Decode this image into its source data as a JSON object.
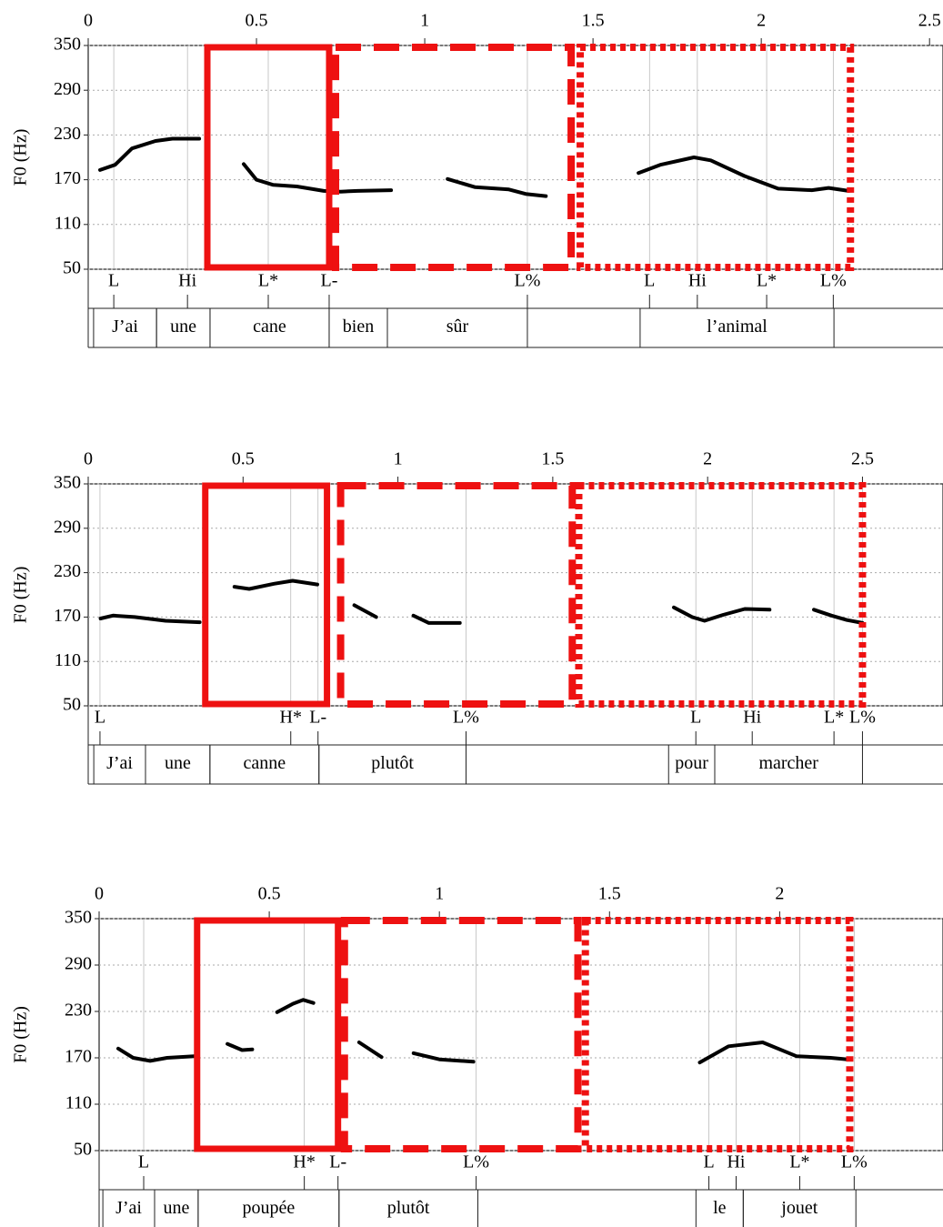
{
  "chart_data": [
    {
      "type": "line",
      "ylabel": "F0 (Hz)",
      "color": "#000000",
      "box_color": "#ee1111",
      "grid": true,
      "xlim": [
        0,
        2.54
      ],
      "xticks": [
        0,
        0.5,
        1,
        1.5,
        2,
        2.5
      ],
      "ylim": [
        50,
        350
      ],
      "yticks": [
        50,
        110,
        170,
        230,
        290,
        350
      ],
      "x": [
        0.035,
        0.08,
        0.13,
        0.2,
        0.25,
        0.33,
        null,
        0.462,
        0.5,
        0.55,
        0.62,
        0.7,
        0.75,
        0.8,
        0.9,
        null,
        1.068,
        1.15,
        1.25,
        1.3,
        1.36,
        null,
        1.635,
        1.7,
        1.8,
        1.85,
        1.95,
        2.05,
        2.15,
        2.2,
        2.26
      ],
      "values": [
        183,
        190,
        212,
        222,
        225,
        225,
        null,
        191,
        170,
        163,
        161,
        155,
        154,
        155,
        156,
        null,
        171,
        160,
        157,
        151,
        148,
        null,
        179,
        190,
        200,
        196,
        175,
        158,
        156,
        159,
        155
      ],
      "tones": [
        {
          "label": "L",
          "x": 0.076
        },
        {
          "label": "Hi",
          "x": 0.295
        },
        {
          "label": "L*",
          "x": 0.535
        },
        {
          "label": "L-",
          "x": 0.716
        },
        {
          "label": "L%",
          "x": 1.305
        },
        {
          "label": "L",
          "x": 1.668
        },
        {
          "label": "Hi",
          "x": 1.81
        },
        {
          "label": "L*",
          "x": 2.016
        },
        {
          "label": "L%",
          "x": 2.214
        }
      ],
      "words": [
        {
          "label": "J’ai",
          "start": 0.016,
          "end": 0.203
        },
        {
          "label": "une",
          "start": 0.203,
          "end": 0.362
        },
        {
          "label": "cane",
          "start": 0.362,
          "end": 0.716
        },
        {
          "label": "bien",
          "start": 0.716,
          "end": 0.889
        },
        {
          "label": "sûr",
          "start": 0.889,
          "end": 1.305
        },
        {
          "label": "l’animal",
          "start": 1.64,
          "end": 2.216
        }
      ],
      "boxes": [
        {
          "style": "solid",
          "start": 0.354,
          "end": 0.716
        },
        {
          "style": "dashed",
          "start": 0.735,
          "end": 1.435
        },
        {
          "style": "dotted",
          "start": 1.462,
          "end": 2.265
        }
      ]
    },
    {
      "type": "line",
      "ylabel": "F0 (Hz)",
      "color": "#000000",
      "box_color": "#ee1111",
      "grid": true,
      "xlim": [
        0,
        2.76
      ],
      "xticks": [
        0,
        0.5,
        1,
        1.5,
        2,
        2.5
      ],
      "ylim": [
        50,
        350
      ],
      "yticks": [
        50,
        110,
        170,
        230,
        290,
        350
      ],
      "x": [
        0.04,
        0.08,
        0.15,
        0.25,
        0.36,
        null,
        0.472,
        0.52,
        0.6,
        0.66,
        0.74,
        null,
        0.859,
        0.93,
        null,
        1.05,
        1.1,
        1.2,
        null,
        1.891,
        1.95,
        1.99,
        2.05,
        2.12,
        2.2,
        null,
        2.343,
        2.4,
        2.45,
        2.5
      ],
      "values": [
        168,
        172,
        170,
        165,
        163,
        null,
        211,
        208,
        215,
        219,
        214,
        null,
        186,
        170,
        null,
        172,
        162,
        162,
        null,
        183,
        170,
        165,
        173,
        181,
        180,
        null,
        180,
        172,
        166,
        162
      ],
      "tones": [
        {
          "label": "L",
          "x": 0.038
        },
        {
          "label": "H*",
          "x": 0.654
        },
        {
          "label": "L-",
          "x": 0.742
        },
        {
          "label": "L%",
          "x": 1.22
        },
        {
          "label": "L",
          "x": 1.962
        },
        {
          "label": "Hi",
          "x": 2.144
        },
        {
          "label": "L*",
          "x": 2.408
        },
        {
          "label": "L%",
          "x": 2.5
        }
      ],
      "words": [
        {
          "label": "J’ai",
          "start": 0.018,
          "end": 0.185
        },
        {
          "label": "une",
          "start": 0.185,
          "end": 0.393
        },
        {
          "label": "canne",
          "start": 0.393,
          "end": 0.745
        },
        {
          "label": "plutôt",
          "start": 0.745,
          "end": 1.22
        },
        {
          "label": "pour",
          "start": 1.874,
          "end": 2.023
        },
        {
          "label": "marcher",
          "start": 2.023,
          "end": 2.5
        }
      ],
      "boxes": [
        {
          "style": "solid",
          "start": 0.378,
          "end": 0.771
        },
        {
          "style": "dashed",
          "start": 0.815,
          "end": 1.563
        },
        {
          "style": "dotted",
          "start": 1.584,
          "end": 2.5
        }
      ]
    },
    {
      "type": "line",
      "ylabel": "F0 (Hz)",
      "color": "#000000",
      "box_color": "#ee1111",
      "grid": true,
      "xlim": [
        0,
        2.48
      ],
      "xticks": [
        0,
        0.5,
        1,
        1.5,
        2
      ],
      "ylim": [
        50,
        350
      ],
      "yticks": [
        50,
        110,
        170,
        230,
        290,
        350
      ],
      "x": [
        0.056,
        0.1,
        0.15,
        0.2,
        0.28,
        null,
        0.377,
        0.42,
        0.45,
        null,
        0.523,
        0.57,
        0.6,
        0.63,
        null,
        0.764,
        0.83,
        null,
        0.924,
        1,
        1.1,
        null,
        1.765,
        1.85,
        1.95,
        2.05,
        2.15,
        2.2
      ],
      "values": [
        182,
        170,
        166,
        170,
        172,
        null,
        188,
        180,
        181,
        null,
        229,
        240,
        245,
        241,
        null,
        190,
        171,
        null,
        176,
        168,
        165,
        null,
        164,
        185,
        190,
        172,
        170,
        168
      ],
      "tones": [
        {
          "label": "L",
          "x": 0.131
        },
        {
          "label": "H*",
          "x": 0.603
        },
        {
          "label": "L-",
          "x": 0.702
        },
        {
          "label": "L%",
          "x": 1.108
        },
        {
          "label": "L",
          "x": 1.792
        },
        {
          "label": "Hi",
          "x": 1.872
        },
        {
          "label": "L*",
          "x": 2.059
        },
        {
          "label": "L%",
          "x": 2.219
        }
      ],
      "words": [
        {
          "label": "J’ai",
          "start": 0.011,
          "end": 0.163
        },
        {
          "label": "une",
          "start": 0.163,
          "end": 0.291
        },
        {
          "label": "poupée",
          "start": 0.291,
          "end": 0.705
        },
        {
          "label": "plutôt",
          "start": 0.705,
          "end": 1.113
        },
        {
          "label": "le",
          "start": 1.754,
          "end": 1.893
        },
        {
          "label": "jouet",
          "start": 1.893,
          "end": 2.224
        }
      ],
      "boxes": [
        {
          "style": "solid",
          "start": 0.288,
          "end": 0.702
        },
        {
          "style": "dashed",
          "start": 0.721,
          "end": 1.407
        },
        {
          "style": "dotted",
          "start": 1.429,
          "end": 2.206
        }
      ]
    }
  ]
}
